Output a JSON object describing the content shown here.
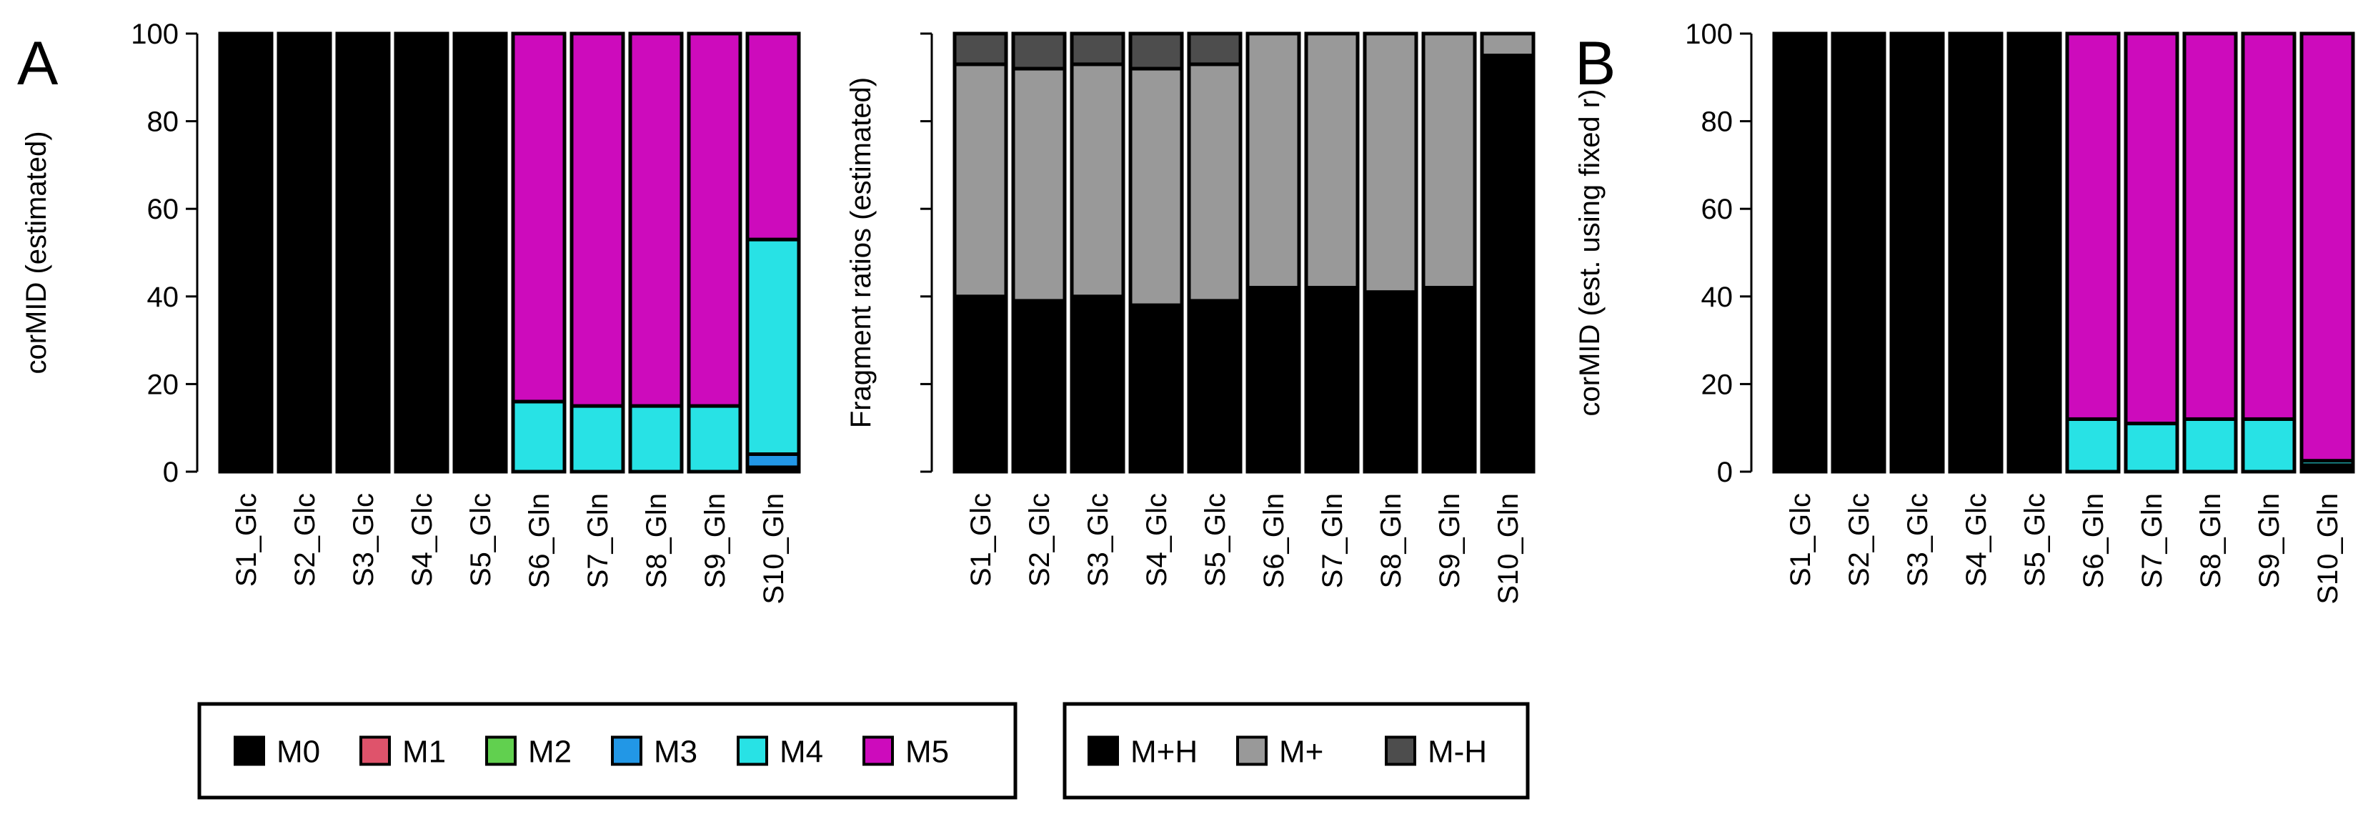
{
  "panel_labels": {
    "a": "A",
    "b": "B"
  },
  "legends": {
    "mid": [
      {
        "label": "M0",
        "color": "#000000"
      },
      {
        "label": "M1",
        "color": "#df536b"
      },
      {
        "label": "M2",
        "color": "#61d04f"
      },
      {
        "label": "M3",
        "color": "#2297e6"
      },
      {
        "label": "M4",
        "color": "#28e2e5"
      },
      {
        "label": "M5",
        "color": "#cd0bbc"
      }
    ],
    "fragment": [
      {
        "label": "M+H",
        "color": "#000000"
      },
      {
        "label": "M+",
        "color": "#999999"
      },
      {
        "label": "M-H",
        "color": "#4d4d4d"
      }
    ]
  },
  "chart_data": [
    {
      "id": "panelA-mid",
      "type": "bar",
      "stacked": true,
      "title": "",
      "xlabel": "",
      "ylabel": "corMID (estimated)",
      "ylim": [
        0,
        100
      ],
      "yticks": [
        "0",
        "20",
        "40",
        "60",
        "80",
        "100"
      ],
      "categories": [
        "S1_Glc",
        "S2_Glc",
        "S3_Glc",
        "S4_Glc",
        "S5_Glc",
        "S6_Gln",
        "S7_Gln",
        "S8_Gln",
        "S9_Gln",
        "S10_Gln"
      ],
      "series": [
        {
          "name": "M0",
          "color": "#000000",
          "values": [
            100,
            100,
            100,
            100,
            100,
            0,
            0,
            0,
            0,
            1
          ]
        },
        {
          "name": "M1",
          "color": "#df536b",
          "values": [
            0,
            0,
            0,
            0,
            0,
            0,
            0,
            0,
            0,
            0
          ]
        },
        {
          "name": "M2",
          "color": "#61d04f",
          "values": [
            0,
            0,
            0,
            0,
            0,
            0,
            0,
            0,
            0,
            0
          ]
        },
        {
          "name": "M3",
          "color": "#2297e6",
          "values": [
            0,
            0,
            0,
            0,
            0,
            0,
            0,
            0,
            0,
            3
          ]
        },
        {
          "name": "M4",
          "color": "#28e2e5",
          "values": [
            0,
            0,
            0,
            0,
            0,
            16,
            15,
            15,
            15,
            49
          ]
        },
        {
          "name": "M5",
          "color": "#cd0bbc",
          "values": [
            0,
            0,
            0,
            0,
            0,
            84,
            85,
            85,
            85,
            47
          ]
        }
      ]
    },
    {
      "id": "panelA-fragment",
      "type": "bar",
      "stacked": true,
      "title": "",
      "xlabel": "",
      "ylabel": "Fragment ratios (estimated)",
      "ylim": [
        0,
        100
      ],
      "yticks": [
        "",
        "",
        "",
        "",
        "",
        ""
      ],
      "categories": [
        "S1_Glc",
        "S2_Glc",
        "S3_Glc",
        "S4_Glc",
        "S5_Glc",
        "S6_Gln",
        "S7_Gln",
        "S8_Gln",
        "S9_Gln",
        "S10_Gln"
      ],
      "series": [
        {
          "name": "M+H",
          "color": "#000000",
          "values": [
            40,
            39,
            40,
            38,
            39,
            42,
            42,
            41,
            42,
            95
          ]
        },
        {
          "name": "M+",
          "color": "#999999",
          "values": [
            53,
            53,
            53,
            54,
            54,
            58,
            58,
            59,
            58,
            5
          ]
        },
        {
          "name": "M-H",
          "color": "#4d4d4d",
          "values": [
            7,
            8,
            7,
            8,
            7,
            0,
            0,
            0,
            0,
            0
          ]
        }
      ]
    },
    {
      "id": "panelB-mid",
      "type": "bar",
      "stacked": true,
      "title": "",
      "xlabel": "",
      "ylabel": "corMID (est. using fixed r)",
      "ylim": [
        0,
        100
      ],
      "yticks": [
        "0",
        "20",
        "40",
        "60",
        "80",
        "100"
      ],
      "categories": [
        "S1_Glc",
        "S2_Glc",
        "S3_Glc",
        "S4_Glc",
        "S5_Glc",
        "S6_Gln",
        "S7_Gln",
        "S8_Gln",
        "S9_Gln",
        "S10_Gln"
      ],
      "series": [
        {
          "name": "M0",
          "color": "#000000",
          "values": [
            100,
            100,
            100,
            100,
            100,
            0,
            0,
            0,
            0,
            1
          ]
        },
        {
          "name": "M1",
          "color": "#df536b",
          "values": [
            0,
            0,
            0,
            0,
            0,
            0,
            0,
            0,
            0,
            0
          ]
        },
        {
          "name": "M2",
          "color": "#61d04f",
          "values": [
            0,
            0,
            0,
            0,
            0,
            0,
            0,
            0,
            0,
            0
          ]
        },
        {
          "name": "M3",
          "color": "#2297e6",
          "values": [
            0,
            0,
            0,
            0,
            0,
            0,
            0,
            0,
            0,
            0.5
          ]
        },
        {
          "name": "M4",
          "color": "#28e2e5",
          "values": [
            0,
            0,
            0,
            0,
            0,
            12,
            11,
            12,
            12,
            1
          ]
        },
        {
          "name": "M5",
          "color": "#cd0bbc",
          "values": [
            0,
            0,
            0,
            0,
            0,
            88,
            89,
            88,
            88,
            97.5
          ]
        }
      ]
    }
  ]
}
